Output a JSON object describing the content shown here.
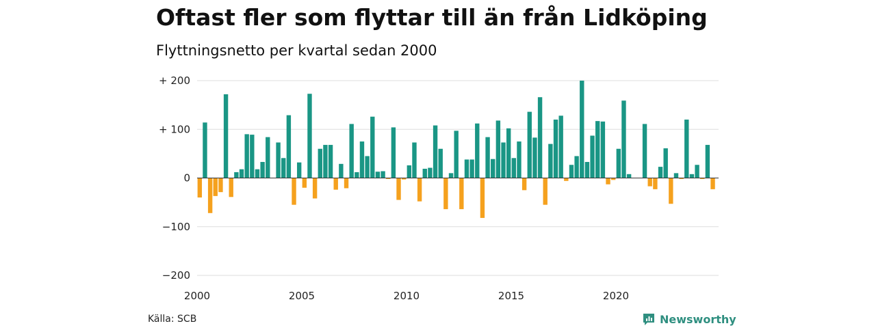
{
  "header": {
    "title": "Oftast fler som flyttar till än från Lidköping",
    "subtitle": "Flyttningsnetto per kvartal sedan 2000"
  },
  "footer": {
    "source": "Källa: SCB",
    "brand": "Newsworthy"
  },
  "colors": {
    "positive": "#1a9685",
    "negative": "#f5a11e",
    "grid": "#dddddd",
    "zero_line": "#333333",
    "brand": "#2f8f80"
  },
  "chart_data": {
    "type": "bar",
    "title": "Oftast fler som flyttar till än från Lidköping",
    "subtitle": "Flyttningsnetto per kvartal sedan 2000",
    "ylim": [
      -200,
      200
    ],
    "yticks": [
      200,
      100,
      0,
      -100,
      -200
    ],
    "ytick_labels": [
      "+ 200",
      "+ 100",
      "0",
      "−100",
      "−200"
    ],
    "xtick_labels": [
      "2000",
      "2005",
      "2010",
      "2015",
      "2020"
    ],
    "xtick_years": [
      2000,
      2005,
      2010,
      2015,
      2020
    ],
    "start_year": 2000,
    "periods_per_year": 4,
    "grid": true,
    "values": [
      -40,
      114,
      -72,
      -37,
      -29,
      172,
      -39,
      12,
      18,
      90,
      89,
      18,
      33,
      84,
      0,
      73,
      41,
      129,
      -55,
      32,
      -20,
      173,
      -42,
      60,
      68,
      68,
      -24,
      29,
      -21,
      111,
      12,
      75,
      45,
      126,
      13,
      14,
      -2,
      104,
      -45,
      -3,
      26,
      73,
      -48,
      19,
      21,
      108,
      60,
      -64,
      10,
      97,
      -64,
      38,
      38,
      112,
      -82,
      84,
      39,
      118,
      73,
      102,
      41,
      75,
      -25,
      136,
      83,
      166,
      -55,
      70,
      120,
      128,
      -6,
      27,
      45,
      200,
      33,
      87,
      117,
      116,
      -13,
      -4,
      60,
      159,
      8,
      0,
      0,
      111,
      -17,
      -23,
      23,
      61,
      -53,
      10,
      -2,
      120,
      8,
      27,
      -2,
      68,
      -23
    ]
  }
}
